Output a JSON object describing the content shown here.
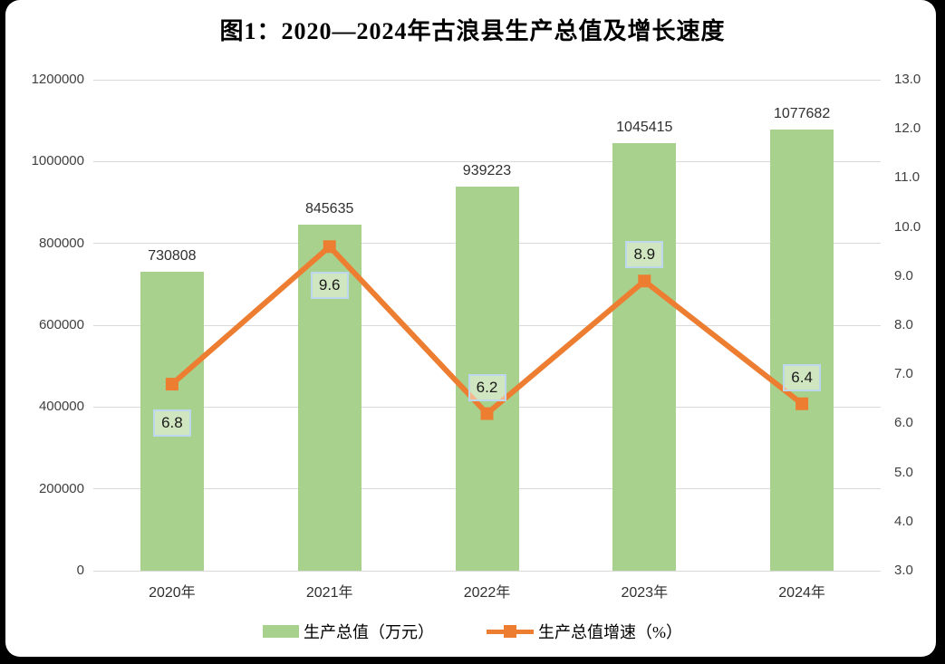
{
  "title": "图1：2020—2024年古浪县生产总值及增长速度",
  "chart_data": {
    "type": "bar+line combo",
    "categories": [
      "2020年",
      "2021年",
      "2022年",
      "2023年",
      "2024年"
    ],
    "series": [
      {
        "name": "生产总值（万元）",
        "type": "bar",
        "axis": "left",
        "color": "#A9D18E",
        "values": [
          730808,
          845635,
          939223,
          1045415,
          1077682
        ],
        "value_labels": [
          "730808",
          "845635",
          "939223",
          "1045415",
          "1077682"
        ]
      },
      {
        "name": "生产总值增速（%）",
        "type": "line",
        "axis": "right",
        "color": "#ED7D31",
        "values": [
          6.8,
          9.6,
          6.2,
          8.9,
          6.4
        ],
        "value_labels": [
          "6.8",
          "9.6",
          "6.2",
          "8.9",
          "6.4"
        ],
        "label_side": [
          "below",
          "below",
          "above",
          "above",
          "above"
        ]
      }
    ],
    "left_axis": {
      "min": 0,
      "max": 1200000,
      "step": 200000,
      "tick_labels": [
        "0",
        "200000",
        "400000",
        "600000",
        "800000",
        "1000000",
        "1200000"
      ]
    },
    "right_axis": {
      "min": 3.0,
      "max": 13.0,
      "step": 1.0,
      "tick_labels": [
        "3.0",
        "4.0",
        "5.0",
        "6.0",
        "7.0",
        "8.0",
        "9.0",
        "10.0",
        "11.0",
        "12.0",
        "13.0"
      ]
    },
    "grid": "horizontal, left-axis intervals",
    "legend_position": "bottom-center",
    "colors": {
      "bar_fill": "#A9D18E",
      "line_stroke": "#ED7D31",
      "gridline": "#d9d9d9",
      "axis_text": "#404040",
      "point_label_border": "#bdd7ee",
      "frame_border": "#000000",
      "background": "#ffffff"
    }
  }
}
